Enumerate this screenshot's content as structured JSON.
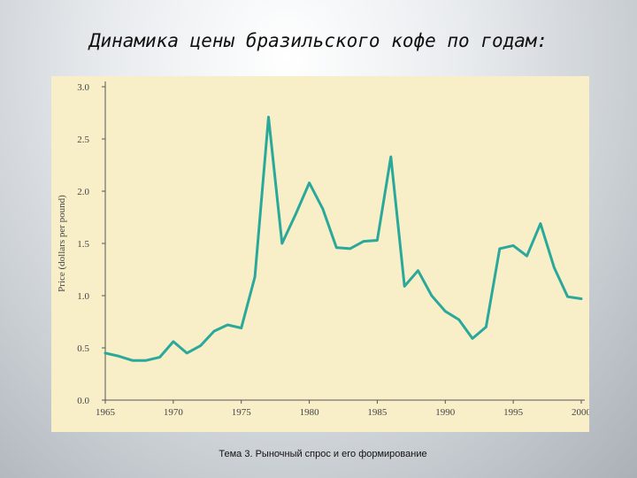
{
  "slide": {
    "title": "Динамика цены бразильского кофе по годам:",
    "footer": "Тема 3. Рыночный спрос и его формирование"
  },
  "chart_data": {
    "type": "line",
    "title": "",
    "xlabel": "",
    "ylabel": "Price (dollars per pound)",
    "xlim": [
      1965,
      2000
    ],
    "ylim": [
      0,
      3.0
    ],
    "x_ticks": [
      1965,
      1970,
      1975,
      1980,
      1985,
      1990,
      1995,
      2000
    ],
    "y_ticks": [
      "0.0",
      "0.5",
      "1.0",
      "1.5",
      "2.0",
      "2.5",
      "3.0"
    ],
    "grid": false,
    "legend": "none",
    "colors": {
      "line": "#2aa89a",
      "axis": "#555555",
      "panel": "#f8efc9"
    },
    "series": [
      {
        "x": [
          1965,
          1966,
          1967,
          1968,
          1969,
          1970,
          1971,
          1972,
          1973,
          1974,
          1975,
          1976,
          1977,
          1978,
          1979,
          1980,
          1981,
          1982,
          1983,
          1984,
          1985,
          1986,
          1987,
          1988,
          1989,
          1990,
          1991,
          1992,
          1993,
          1994,
          1995,
          1996,
          1997,
          1998,
          1999,
          2000
        ],
        "y": [
          0.45,
          0.42,
          0.38,
          0.38,
          0.41,
          0.56,
          0.45,
          0.52,
          0.66,
          0.72,
          0.69,
          1.18,
          2.71,
          1.5,
          1.78,
          2.08,
          1.83,
          1.46,
          1.45,
          1.52,
          1.53,
          2.33,
          1.09,
          1.24,
          1.0,
          0.85,
          0.77,
          0.59,
          0.7,
          1.45,
          1.48,
          1.38,
          1.69,
          1.27,
          0.99,
          0.97
        ]
      }
    ]
  }
}
